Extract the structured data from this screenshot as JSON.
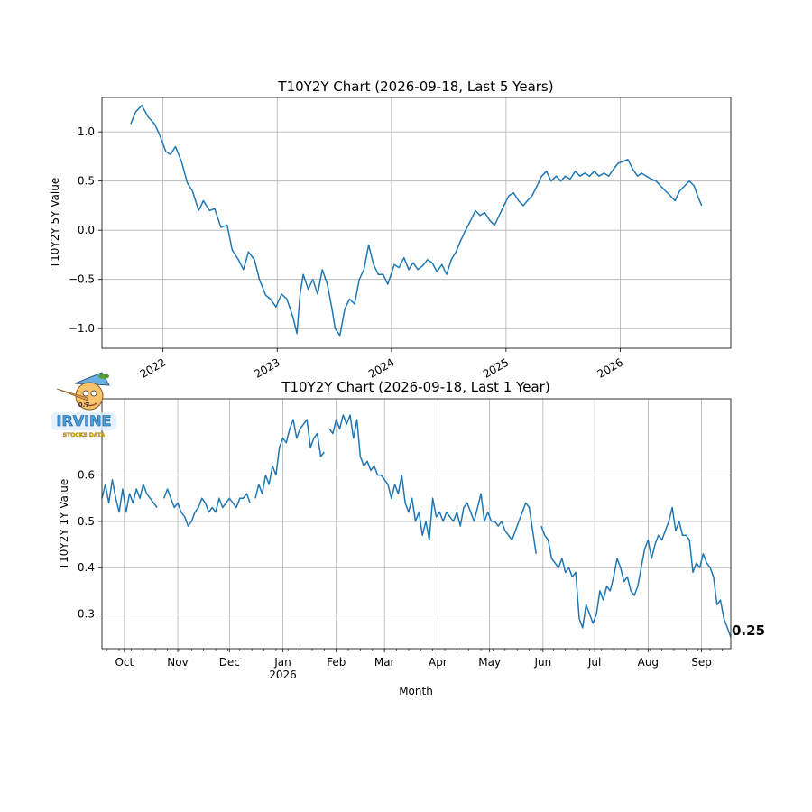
{
  "chart_data": [
    {
      "type": "line",
      "title": "T10Y2Y Chart (2026-09-18, Last 5 Years)",
      "xlabel": "",
      "ylabel": "T10Y2Y 5Y Value",
      "x_type": "date",
      "xlim": [
        "2021-06-20",
        "2026-12-20"
      ],
      "ylim": [
        -1.2,
        1.35
      ],
      "yticks": [
        -1.0,
        -0.5,
        0.0,
        0.5,
        1.0
      ],
      "ytick_labels": [
        "−1.0",
        "−0.5",
        "0.0",
        "0.5",
        "1.0"
      ],
      "xticks": [
        "2022-01-01",
        "2023-01-01",
        "2024-01-01",
        "2025-01-01",
        "2026-01-01"
      ],
      "xtick_labels": [
        "2022",
        "2023",
        "2024",
        "2025",
        "2026"
      ],
      "grid": true,
      "series": [
        {
          "color": "#1f77b4",
          "x": [
            "2021-09-20",
            "2021-10-05",
            "2021-10-25",
            "2021-11-15",
            "2021-12-05",
            "2021-12-20",
            "2022-01-10",
            "2022-01-25",
            "2022-02-10",
            "2022-03-01",
            "2022-03-20",
            "2022-04-05",
            "2022-04-25",
            "2022-05-10",
            "2022-05-30",
            "2022-06-15",
            "2022-07-05",
            "2022-07-25",
            "2022-08-10",
            "2022-08-30",
            "2022-09-15",
            "2022-10-01",
            "2022-10-20",
            "2022-11-05",
            "2022-11-25",
            "2022-12-10",
            "2022-12-28",
            "2023-01-15",
            "2023-02-01",
            "2023-02-20",
            "2023-03-05",
            "2023-03-15",
            "2023-03-25",
            "2023-04-10",
            "2023-04-25",
            "2023-05-10",
            "2023-05-25",
            "2023-06-10",
            "2023-06-25",
            "2023-07-05",
            "2023-07-20",
            "2023-08-05",
            "2023-08-20",
            "2023-09-05",
            "2023-09-20",
            "2023-10-05",
            "2023-10-20",
            "2023-11-05",
            "2023-11-20",
            "2023-12-05",
            "2023-12-20",
            "2024-01-10",
            "2024-01-25",
            "2024-02-10",
            "2024-02-25",
            "2024-03-10",
            "2024-03-25",
            "2024-04-10",
            "2024-04-25",
            "2024-05-10",
            "2024-05-25",
            "2024-06-10",
            "2024-06-25",
            "2024-07-10",
            "2024-07-25",
            "2024-08-10",
            "2024-08-25",
            "2024-09-10",
            "2024-09-25",
            "2024-10-10",
            "2024-10-25",
            "2024-11-10",
            "2024-11-25",
            "2024-12-10",
            "2024-12-25",
            "2025-01-10",
            "2025-01-25",
            "2025-02-10",
            "2025-02-25",
            "2025-03-10",
            "2025-03-25",
            "2025-04-10",
            "2025-04-25",
            "2025-05-10",
            "2025-05-25",
            "2025-06-10",
            "2025-06-25",
            "2025-07-10",
            "2025-07-25",
            "2025-08-10",
            "2025-08-25",
            "2025-09-10",
            "2025-09-25",
            "2025-10-10",
            "2025-10-25",
            "2025-11-10",
            "2025-11-25",
            "2025-12-10",
            "2025-12-25",
            "2026-01-10",
            "2026-01-25",
            "2026-02-10",
            "2026-02-25",
            "2026-03-10",
            "2026-03-25",
            "2026-04-10",
            "2026-04-25",
            "2026-05-10",
            "2026-05-25",
            "2026-06-10",
            "2026-06-25",
            "2026-07-10",
            "2026-07-25",
            "2026-08-10",
            "2026-08-25",
            "2026-09-05",
            "2026-09-18"
          ],
          "values": [
            1.08,
            1.2,
            1.27,
            1.15,
            1.08,
            0.98,
            0.8,
            0.77,
            0.85,
            0.7,
            0.48,
            0.4,
            0.2,
            0.3,
            0.2,
            0.22,
            0.03,
            0.05,
            -0.2,
            -0.3,
            -0.4,
            -0.22,
            -0.3,
            -0.5,
            -0.66,
            -0.7,
            -0.78,
            -0.65,
            -0.7,
            -0.88,
            -1.05,
            -0.65,
            -0.45,
            -0.6,
            -0.5,
            -0.65,
            -0.4,
            -0.55,
            -0.8,
            -1.0,
            -1.07,
            -0.8,
            -0.7,
            -0.75,
            -0.5,
            -0.4,
            -0.15,
            -0.35,
            -0.45,
            -0.45,
            -0.55,
            -0.35,
            -0.38,
            -0.28,
            -0.4,
            -0.33,
            -0.4,
            -0.36,
            -0.3,
            -0.33,
            -0.42,
            -0.35,
            -0.45,
            -0.3,
            -0.22,
            -0.1,
            0.0,
            0.1,
            0.2,
            0.15,
            0.18,
            0.1,
            0.05,
            0.15,
            0.25,
            0.35,
            0.38,
            0.3,
            0.25,
            0.3,
            0.35,
            0.45,
            0.55,
            0.6,
            0.5,
            0.55,
            0.5,
            0.55,
            0.52,
            0.6,
            0.55,
            0.58,
            0.55,
            0.6,
            0.55,
            0.58,
            0.55,
            0.62,
            0.68,
            0.7,
            0.72,
            0.62,
            0.55,
            0.58,
            0.55,
            0.52,
            0.5,
            0.45,
            0.4,
            0.35,
            0.3,
            0.4,
            0.45,
            0.5,
            0.45,
            0.35,
            0.25
          ]
        }
      ]
    },
    {
      "type": "line",
      "title": "T10Y2Y Chart (2026-09-18, Last 1 Year)",
      "xlabel": "Month",
      "ylabel": "T10Y2Y 1Y Value",
      "x_type": "date",
      "xlim": [
        "2025-09-18",
        "2026-09-18"
      ],
      "ylim": [
        0.225,
        0.765
      ],
      "yticks": [
        0.3,
        0.4,
        0.5,
        0.6
      ],
      "ytick_labels": [
        "0.3",
        "0.4",
        "0.5",
        "0.6"
      ],
      "xticks": [
        "2025-10-01",
        "2025-11-01",
        "2025-12-01",
        "2026-01-01",
        "2026-02-01",
        "2026-03-01",
        "2026-04-01",
        "2026-05-01",
        "2026-06-01",
        "2026-07-01",
        "2026-08-01",
        "2026-09-01"
      ],
      "xtick_labels": [
        "Oct",
        "Nov",
        "Dec",
        "Jan",
        "Feb",
        "Mar",
        "Apr",
        "May",
        "Jun",
        "Jul",
        "Aug",
        "Sep"
      ],
      "xtick_sublabels": [
        "",
        "",
        "",
        "2026",
        "",
        "",
        "",
        "",
        "",
        "",
        "",
        ""
      ],
      "grid": true,
      "last_value_label": "0.25",
      "series": [
        {
          "color": "#1f77b4",
          "segments": [
            {
              "x": [
                "2025-09-18",
                "2025-09-20",
                "2025-09-22",
                "2025-09-24",
                "2025-09-26",
                "2025-09-28",
                "2025-09-30",
                "2025-10-02",
                "2025-10-04",
                "2025-10-06",
                "2025-10-08",
                "2025-10-10",
                "2025-10-12",
                "2025-10-14",
                "2025-10-16",
                "2025-10-18",
                "2025-10-20"
              ],
              "values": [
                0.55,
                0.58,
                0.54,
                0.59,
                0.55,
                0.52,
                0.57,
                0.52,
                0.56,
                0.54,
                0.57,
                0.55,
                0.58,
                0.56,
                0.55,
                0.54,
                0.53
              ]
            },
            {
              "x": [
                "2025-10-24",
                "2025-10-26",
                "2025-10-28",
                "2025-10-30",
                "2025-11-01",
                "2025-11-03",
                "2025-11-05",
                "2025-11-07",
                "2025-11-09",
                "2025-11-11",
                "2025-11-13",
                "2025-11-15",
                "2025-11-17",
                "2025-11-19",
                "2025-11-21",
                "2025-11-23",
                "2025-11-25",
                "2025-11-27",
                "2025-11-29",
                "2025-12-01",
                "2025-12-03",
                "2025-12-05",
                "2025-12-07",
                "2025-12-09",
                "2025-12-11",
                "2025-12-13"
              ],
              "values": [
                0.55,
                0.57,
                0.55,
                0.53,
                0.54,
                0.52,
                0.51,
                0.49,
                0.5,
                0.52,
                0.53,
                0.55,
                0.54,
                0.52,
                0.53,
                0.52,
                0.55,
                0.53,
                0.54,
                0.55,
                0.54,
                0.53,
                0.55,
                0.55,
                0.56,
                0.54
              ]
            },
            {
              "x": [
                "2025-12-16",
                "2025-12-18",
                "2025-12-20",
                "2025-12-22",
                "2025-12-24",
                "2025-12-26",
                "2025-12-28",
                "2025-12-30",
                "2026-01-01",
                "2026-01-03",
                "2026-01-05",
                "2026-01-07",
                "2026-01-09",
                "2026-01-11",
                "2026-01-13",
                "2026-01-15",
                "2026-01-17",
                "2026-01-19",
                "2026-01-21",
                "2026-01-23",
                "2026-01-25"
              ],
              "values": [
                0.55,
                0.58,
                0.56,
                0.6,
                0.58,
                0.62,
                0.6,
                0.66,
                0.68,
                0.67,
                0.7,
                0.72,
                0.68,
                0.7,
                0.71,
                0.72,
                0.66,
                0.68,
                0.69,
                0.64,
                0.65
              ]
            },
            {
              "x": [
                "2026-01-28",
                "2026-01-30",
                "2026-02-01",
                "2026-02-03",
                "2026-02-05",
                "2026-02-07",
                "2026-02-09",
                "2026-02-11",
                "2026-02-13",
                "2026-02-15",
                "2026-02-17",
                "2026-02-19",
                "2026-02-21",
                "2026-02-23",
                "2026-02-25",
                "2026-02-27",
                "2026-03-01",
                "2026-03-03",
                "2026-03-05",
                "2026-03-07",
                "2026-03-09",
                "2026-03-11",
                "2026-03-13",
                "2026-03-15",
                "2026-03-17",
                "2026-03-19",
                "2026-03-21",
                "2026-03-23",
                "2026-03-25",
                "2026-03-27",
                "2026-03-29",
                "2026-03-31",
                "2026-04-02",
                "2026-04-04",
                "2026-04-06",
                "2026-04-08",
                "2026-04-10",
                "2026-04-12",
                "2026-04-14",
                "2026-04-16",
                "2026-04-18",
                "2026-04-20",
                "2026-04-22",
                "2026-04-24",
                "2026-04-26",
                "2026-04-28",
                "2026-04-30",
                "2026-05-02",
                "2026-05-04",
                "2026-05-06",
                "2026-05-08",
                "2026-05-10",
                "2026-05-12",
                "2026-05-14",
                "2026-05-16",
                "2026-05-18",
                "2026-05-20",
                "2026-05-22",
                "2026-05-24",
                "2026-05-26",
                "2026-05-28"
              ],
              "values": [
                0.7,
                0.69,
                0.72,
                0.7,
                0.73,
                0.71,
                0.73,
                0.68,
                0.72,
                0.64,
                0.62,
                0.63,
                0.61,
                0.62,
                0.6,
                0.6,
                0.59,
                0.58,
                0.55,
                0.58,
                0.56,
                0.6,
                0.54,
                0.52,
                0.55,
                0.5,
                0.52,
                0.47,
                0.5,
                0.46,
                0.55,
                0.51,
                0.52,
                0.5,
                0.52,
                0.51,
                0.5,
                0.52,
                0.49,
                0.53,
                0.54,
                0.52,
                0.5,
                0.53,
                0.56,
                0.5,
                0.52,
                0.5,
                0.5,
                0.49,
                0.5,
                0.48,
                0.47,
                0.46,
                0.48,
                0.5,
                0.52,
                0.54,
                0.53,
                0.48,
                0.43
              ]
            },
            {
              "x": [
                "2026-05-31",
                "2026-06-02",
                "2026-06-04",
                "2026-06-06",
                "2026-06-08",
                "2026-06-10",
                "2026-06-12",
                "2026-06-14",
                "2026-06-16",
                "2026-06-18",
                "2026-06-20",
                "2026-06-22",
                "2026-06-24",
                "2026-06-26",
                "2026-06-28",
                "2026-06-30",
                "2026-07-02",
                "2026-07-04",
                "2026-07-06",
                "2026-07-08",
                "2026-07-10",
                "2026-07-12",
                "2026-07-14",
                "2026-07-16",
                "2026-07-18",
                "2026-07-20",
                "2026-07-22",
                "2026-07-24",
                "2026-07-26",
                "2026-07-28",
                "2026-07-30",
                "2026-08-01",
                "2026-08-03",
                "2026-08-05",
                "2026-08-07",
                "2026-08-09",
                "2026-08-11",
                "2026-08-13",
                "2026-08-15",
                "2026-08-17",
                "2026-08-19",
                "2026-08-21",
                "2026-08-23",
                "2026-08-25",
                "2026-08-27",
                "2026-08-29",
                "2026-08-31",
                "2026-09-02",
                "2026-09-04",
                "2026-09-06",
                "2026-09-08",
                "2026-09-10",
                "2026-09-12",
                "2026-09-14",
                "2026-09-16",
                "2026-09-18"
              ],
              "values": [
                0.49,
                0.47,
                0.46,
                0.42,
                0.41,
                0.4,
                0.42,
                0.39,
                0.4,
                0.38,
                0.39,
                0.29,
                0.27,
                0.32,
                0.3,
                0.28,
                0.3,
                0.35,
                0.33,
                0.36,
                0.35,
                0.38,
                0.42,
                0.4,
                0.37,
                0.38,
                0.35,
                0.34,
                0.36,
                0.4,
                0.44,
                0.46,
                0.42,
                0.45,
                0.47,
                0.46,
                0.48,
                0.5,
                0.53,
                0.48,
                0.5,
                0.47,
                0.47,
                0.46,
                0.39,
                0.41,
                0.4,
                0.43,
                0.41,
                0.4,
                0.38,
                0.32,
                0.33,
                0.29,
                0.27,
                0.25
              ]
            }
          ]
        }
      ]
    }
  ],
  "logo": {
    "text": "IRVINE",
    "subtext": "STOCKS DATA",
    "badge": "0.7",
    "colors": {
      "text": "#4aa3e0",
      "sub": "#f0c020",
      "face": "#f6c36a",
      "hat": "#6ab0e0",
      "leaf": "#5a9a3a"
    },
    "icon": "pinocchio-mascot-icon"
  }
}
